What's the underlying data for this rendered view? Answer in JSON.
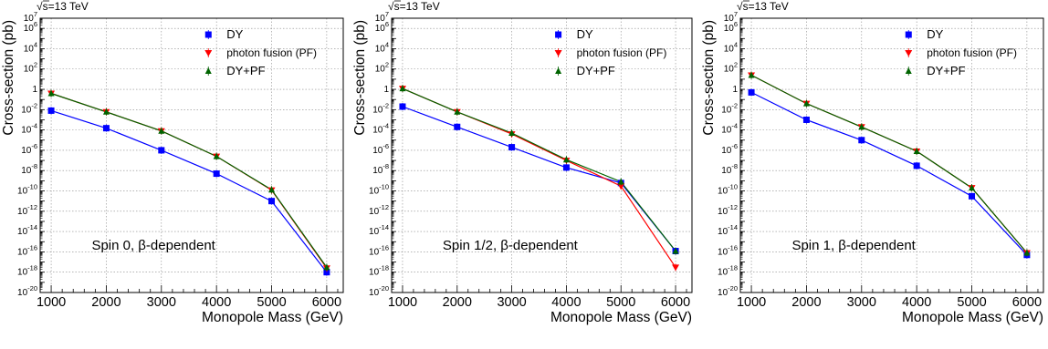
{
  "chart_data": [
    {
      "type": "line",
      "energy_label": "√s=13 TeV",
      "ylabel": "Cross-section (pb)",
      "xlabel": "Monopole Mass (GeV)",
      "annotation": "Spin 0, β-dependent",
      "xlim": [
        800,
        6300
      ],
      "ylim_log10": [
        -20,
        7
      ],
      "ytick_labels": [
        "10^-20",
        "10^-18",
        "10^-16",
        "10^-14",
        "10^-12",
        "10^-10",
        "10^-8",
        "10^-6",
        "10^-4",
        "10^-2",
        "1",
        "10^2",
        "10^4",
        "10^6",
        "10^7"
      ],
      "xtick_labels": [
        "1000",
        "2000",
        "3000",
        "4000",
        "5000",
        "6000"
      ],
      "legend_position": "top-right",
      "series": [
        {
          "name": "DY",
          "color": "#0000ff",
          "marker": "square",
          "x": [
            1000,
            2000,
            3000,
            4000,
            5000,
            6000
          ],
          "y": [
            0.008,
            0.00015,
            1e-06,
            5e-09,
            1e-11,
            1e-18
          ]
        },
        {
          "name": "photon fusion (PF)",
          "color": "#ff0000",
          "marker": "triangle-down",
          "x": [
            1000,
            2000,
            3000,
            4000,
            5000,
            6000
          ],
          "y": [
            0.4,
            0.006,
            8e-05,
            2.5e-07,
            1.2e-10,
            2.5e-18
          ]
        },
        {
          "name": "DY+PF",
          "color": "#006400",
          "marker": "triangle-up",
          "x": [
            1000,
            2000,
            3000,
            4000,
            5000,
            6000
          ],
          "y": [
            0.4,
            0.006,
            8e-05,
            2.5e-07,
            1.3e-10,
            3e-18
          ]
        }
      ]
    },
    {
      "type": "line",
      "energy_label": "√s=13 TeV",
      "ylabel": "Cross-section (pb)",
      "xlabel": "Monopole Mass (GeV)",
      "annotation": "Spin 1/2, β-dependent",
      "xlim": [
        800,
        6300
      ],
      "ylim_log10": [
        -20,
        7
      ],
      "ytick_labels": [
        "10^-20",
        "10^-18",
        "10^-16",
        "10^-14",
        "10^-12",
        "10^-10",
        "10^-8",
        "10^-6",
        "10^-4",
        "10^-2",
        "1",
        "10^2",
        "10^4",
        "10^6",
        "10^7"
      ],
      "xtick_labels": [
        "1000",
        "2000",
        "3000",
        "4000",
        "5000",
        "6000"
      ],
      "legend_position": "top-right",
      "series": [
        {
          "name": "DY",
          "color": "#0000ff",
          "marker": "square",
          "x": [
            1000,
            2000,
            3000,
            4000,
            5000,
            6000
          ],
          "y": [
            0.02,
            0.0002,
            2e-06,
            2e-08,
            6e-10,
            1.2e-16
          ]
        },
        {
          "name": "photon fusion (PF)",
          "color": "#ff0000",
          "marker": "triangle-down",
          "x": [
            1000,
            2000,
            3000,
            4000,
            5000,
            6000
          ],
          "y": [
            1.2,
            0.006,
            4e-05,
            1e-07,
            3e-10,
            3e-18
          ]
        },
        {
          "name": "DY+PF",
          "color": "#006400",
          "marker": "triangle-up",
          "x": [
            1000,
            2000,
            3000,
            4000,
            5000,
            6000
          ],
          "y": [
            1.2,
            0.006,
            5e-05,
            1.2e-07,
            8e-10,
            1.2e-16
          ]
        }
      ]
    },
    {
      "type": "line",
      "energy_label": "√s=13 TeV",
      "ylabel": "Cross-section (pb)",
      "xlabel": "Monopole Mass (GeV)",
      "annotation": "Spin 1, β-dependent",
      "xlim": [
        800,
        6300
      ],
      "ylim_log10": [
        -20,
        7
      ],
      "ytick_labels": [
        "10^-20",
        "10^-18",
        "10^-16",
        "10^-14",
        "10^-12",
        "10^-10",
        "10^-8",
        "10^-6",
        "10^-4",
        "10^-2",
        "1",
        "10^2",
        "10^4",
        "10^6",
        "10^7"
      ],
      "xtick_labels": [
        "1000",
        "2000",
        "3000",
        "4000",
        "5000",
        "6000"
      ],
      "legend_position": "top-right",
      "series": [
        {
          "name": "DY",
          "color": "#0000ff",
          "marker": "square",
          "x": [
            1000,
            2000,
            3000,
            4000,
            5000,
            6000
          ],
          "y": [
            0.5,
            0.001,
            1e-05,
            3e-08,
            3e-11,
            5e-17
          ]
        },
        {
          "name": "photon fusion (PF)",
          "color": "#ff0000",
          "marker": "triangle-down",
          "x": [
            1000,
            2000,
            3000,
            4000,
            5000,
            6000
          ],
          "y": [
            25,
            0.04,
            0.0002,
            8e-07,
            2e-10,
            8e-17
          ]
        },
        {
          "name": "DY+PF",
          "color": "#006400",
          "marker": "triangle-up",
          "x": [
            1000,
            2000,
            3000,
            4000,
            5000,
            6000
          ],
          "y": [
            25,
            0.04,
            0.0002,
            8e-07,
            2e-10,
            8e-17
          ]
        }
      ]
    }
  ]
}
